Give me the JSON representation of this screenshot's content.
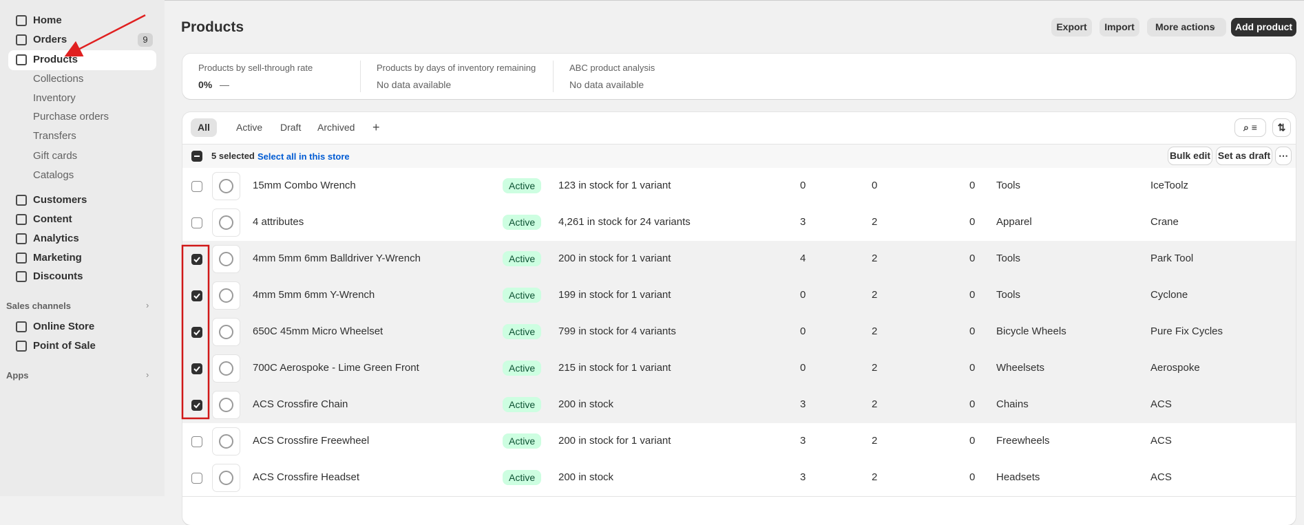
{
  "sidebar": {
    "nav": [
      {
        "label": "Home"
      },
      {
        "label": "Orders",
        "badge": 9
      },
      {
        "label": "Products",
        "active": true
      },
      {
        "label": "Collections",
        "sub": true
      },
      {
        "label": "Inventory",
        "sub": true
      },
      {
        "label": "Purchase orders",
        "sub": true
      },
      {
        "label": "Transfers",
        "sub": true
      },
      {
        "label": "Gift cards",
        "sub": true
      },
      {
        "label": "Catalogs",
        "sub": true
      },
      {
        "label": "Customers"
      },
      {
        "label": "Content"
      },
      {
        "label": "Analytics"
      },
      {
        "label": "Marketing"
      },
      {
        "label": "Discounts"
      }
    ],
    "sales_channels": {
      "title": "Sales channels",
      "items": [
        "Online Store",
        "Point of Sale"
      ]
    },
    "apps": {
      "title": "Apps"
    }
  },
  "header": {
    "title": "Products",
    "actions": [
      "Export",
      "Import",
      "More actions"
    ],
    "primary": "Add product"
  },
  "metrics": [
    {
      "label": "Products by sell-through rate",
      "value": "0%",
      "trend": "—"
    },
    {
      "label": "Products by days of inventory remaining",
      "value": "No data available"
    },
    {
      "label": "ABC product analysis",
      "value": "No data available"
    }
  ],
  "tabs": [
    {
      "label": "All",
      "selected": true
    },
    {
      "label": "Active"
    },
    {
      "label": "Draft"
    },
    {
      "label": "Archived"
    },
    {
      "label": "+"
    }
  ],
  "selection": {
    "count": "5 selected",
    "select_all": "Select all in this store",
    "actions": [
      "Bulk edit",
      "Set as draft"
    ]
  },
  "rows": [
    {
      "checked": false,
      "name": "15mm Combo Wrench",
      "status": "Active",
      "inventory": "123 in stock for 1 variant",
      "counts": [
        0,
        0,
        0
      ],
      "type": "Tools",
      "vendor": "IceToolz"
    },
    {
      "checked": false,
      "name": "4 attributes",
      "status": "Active",
      "inventory": "4,261 in stock for 24 variants",
      "counts": [
        3,
        2,
        0
      ],
      "type": "Apparel",
      "vendor": "Crane"
    },
    {
      "checked": true,
      "name": "4mm 5mm 6mm Balldriver Y-Wrench",
      "status": "Active",
      "inventory": "200 in stock for 1 variant",
      "counts": [
        4,
        2,
        0
      ],
      "type": "Tools",
      "vendor": "Park Tool"
    },
    {
      "checked": true,
      "name": "4mm 5mm 6mm Y-Wrench",
      "status": "Active",
      "inventory": "199 in stock for 1 variant",
      "counts": [
        0,
        2,
        0
      ],
      "type": "Tools",
      "vendor": "Cyclone"
    },
    {
      "checked": true,
      "name": "650C 45mm Micro Wheelset",
      "status": "Active",
      "inventory": "799 in stock for 4 variants",
      "counts": [
        0,
        2,
        0
      ],
      "type": "Bicycle Wheels",
      "vendor": "Pure Fix Cycles"
    },
    {
      "checked": true,
      "name": "700C Aerospoke - Lime Green Front",
      "status": "Active",
      "inventory": "215 in stock for 1 variant",
      "counts": [
        0,
        2,
        0
      ],
      "type": "Wheelsets",
      "vendor": "Aerospoke"
    },
    {
      "checked": true,
      "name": "ACS Crossfire Chain",
      "status": "Active",
      "inventory": "200 in stock",
      "counts": [
        3,
        2,
        0
      ],
      "type": "Chains",
      "vendor": "ACS"
    },
    {
      "checked": false,
      "name": "ACS Crossfire Freewheel",
      "status": "Active",
      "inventory": "200 in stock for 1 variant",
      "counts": [
        3,
        2,
        0
      ],
      "type": "Freewheels",
      "vendor": "ACS"
    },
    {
      "checked": false,
      "name": "ACS Crossfire Headset",
      "status": "Active",
      "inventory": "200 in stock",
      "counts": [
        3,
        2,
        0
      ],
      "type": "Headsets",
      "vendor": "ACS"
    }
  ]
}
